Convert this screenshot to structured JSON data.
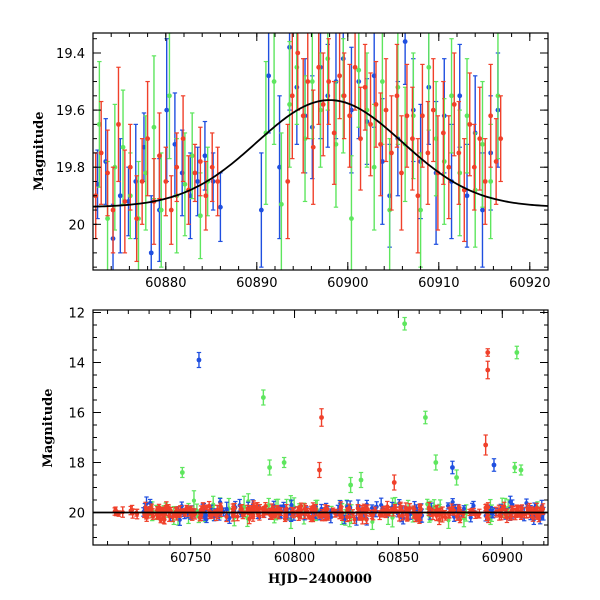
{
  "colors": {
    "blue": "#1f4fe0",
    "green": "#5ee65e",
    "red": "#f0402a",
    "model": "#000000"
  },
  "chart_data": [
    {
      "type": "scatter",
      "id": "top",
      "xlabel": "",
      "ylabel": "Magnitude",
      "xlim": [
        60872,
        60922
      ],
      "ylim": [
        20.16,
        19.33
      ],
      "y_inverted": true,
      "xticks": [
        60880,
        60890,
        60900,
        60910,
        60920
      ],
      "yticks": [
        19.4,
        19.6,
        19.8,
        20
      ],
      "ytick_labels": [
        "19.4",
        "19.6",
        "19.8",
        "20"
      ],
      "model": {
        "type": "gaussian_peak",
        "baseline": 19.94,
        "peak_mag": 19.565,
        "t0": 60898,
        "sigma": 8
      },
      "series": [
        {
          "color_key": "blue",
          "points": [
            [
              60872.5,
              19.86,
              0.12
            ],
            [
              60873.4,
              19.78,
              0.15
            ],
            [
              60874.2,
              20.05,
              0.12
            ],
            [
              60875.0,
              19.9,
              0.2
            ],
            [
              60875.9,
              19.92,
              0.12
            ],
            [
              60876.7,
              19.85,
              0.2
            ],
            [
              60877.6,
              19.73,
              0.12
            ],
            [
              60878.4,
              20.1,
              0.2
            ],
            [
              60879.3,
              19.95,
              0.18
            ],
            [
              60880.1,
              19.6,
              0.25
            ],
            [
              60881.0,
              19.72,
              0.18
            ],
            [
              60881.8,
              19.82,
              0.15
            ],
            [
              60882.7,
              19.9,
              0.15
            ],
            [
              60883.5,
              19.85,
              0.12
            ],
            [
              60884.3,
              19.76,
              0.12
            ],
            [
              60885.2,
              19.85,
              0.1
            ],
            [
              60886.0,
              19.94,
              0.12
            ],
            [
              60890.5,
              19.95,
              0.2
            ],
            [
              60891.3,
              19.48,
              0.2
            ],
            [
              60892.5,
              19.8,
              0.25
            ],
            [
              60893.6,
              19.38,
              0.22
            ],
            [
              60894.4,
              19.52,
              0.2
            ],
            [
              60895.3,
              19.62,
              0.2
            ],
            [
              60896.1,
              19.66,
              0.18
            ],
            [
              60897.0,
              19.45,
              0.25
            ],
            [
              60897.8,
              19.55,
              0.18
            ],
            [
              60898.7,
              19.5,
              0.2
            ],
            [
              60899.5,
              19.42,
              0.15
            ],
            [
              60900.4,
              19.6,
              0.22
            ],
            [
              60901.2,
              19.5,
              0.2
            ],
            [
              60902.1,
              19.64,
              0.15
            ],
            [
              60902.9,
              19.48,
              0.18
            ],
            [
              60903.8,
              19.78,
              0.22
            ],
            [
              60904.6,
              19.9,
              0.18
            ],
            [
              60905.5,
              19.7,
              0.2
            ],
            [
              60906.3,
              19.36,
              0.15
            ],
            [
              60907.2,
              19.6,
              0.18
            ],
            [
              60908.0,
              19.78,
              0.2
            ],
            [
              60908.9,
              19.52,
              0.2
            ],
            [
              60909.7,
              19.82,
              0.25
            ],
            [
              60910.6,
              19.62,
              0.2
            ],
            [
              60911.4,
              19.85,
              0.2
            ],
            [
              60912.3,
              19.55,
              0.18
            ],
            [
              60913.1,
              19.9,
              0.18
            ],
            [
              60914.0,
              19.68,
              0.2
            ],
            [
              60914.8,
              19.95,
              0.2
            ],
            [
              60915.7,
              19.75,
              0.2
            ],
            [
              60916.5,
              19.6,
              0.2
            ]
          ]
        },
        {
          "color_key": "green",
          "points": [
            [
              60872.7,
              19.65,
              0.22
            ],
            [
              60873.6,
              19.98,
              0.2
            ],
            [
              60874.4,
              19.8,
              0.22
            ],
            [
              60875.3,
              19.73,
              0.2
            ],
            [
              60876.1,
              19.9,
              0.15
            ],
            [
              60877.0,
              19.98,
              0.2
            ],
            [
              60877.8,
              19.82,
              0.2
            ],
            [
              60878.7,
              19.66,
              0.25
            ],
            [
              60879.5,
              19.95,
              0.2
            ],
            [
              60880.4,
              19.55,
              0.22
            ],
            [
              60881.2,
              19.9,
              0.2
            ],
            [
              60882.1,
              19.86,
              0.18
            ],
            [
              60882.9,
              19.76,
              0.15
            ],
            [
              60883.8,
              19.97,
              0.15
            ],
            [
              60884.6,
              19.85,
              0.12
            ],
            [
              60891.0,
              19.68,
              0.25
            ],
            [
              60891.9,
              19.5,
              0.22
            ],
            [
              60892.7,
              19.93,
              0.25
            ],
            [
              60893.6,
              19.58,
              0.22
            ],
            [
              60894.4,
              19.45,
              0.2
            ],
            [
              60895.3,
              19.7,
              0.22
            ],
            [
              60896.1,
              19.5,
              0.2
            ],
            [
              60897.0,
              19.6,
              0.2
            ],
            [
              60897.8,
              19.42,
              0.18
            ],
            [
              60898.7,
              19.72,
              0.22
            ],
            [
              60899.5,
              19.55,
              0.2
            ],
            [
              60900.4,
              19.98,
              0.22
            ],
            [
              60901.2,
              19.46,
              0.2
            ],
            [
              60902.1,
              19.6,
              0.2
            ],
            [
              60902.9,
              19.8,
              0.22
            ],
            [
              60903.8,
              19.5,
              0.22
            ],
            [
              60904.6,
              19.95,
              0.25
            ],
            [
              60905.5,
              19.52,
              0.2
            ],
            [
              60906.3,
              19.72,
              0.2
            ],
            [
              60907.2,
              19.62,
              0.22
            ],
            [
              60908.0,
              19.95,
              0.2
            ],
            [
              60908.9,
              19.45,
              0.22
            ],
            [
              60909.7,
              19.7,
              0.2
            ],
            [
              60910.6,
              19.78,
              0.22
            ],
            [
              60911.4,
              19.55,
              0.2
            ],
            [
              60912.3,
              19.82,
              0.22
            ],
            [
              60913.1,
              19.62,
              0.2
            ],
            [
              60914.0,
              19.88,
              0.2
            ],
            [
              60914.8,
              19.72,
              0.22
            ],
            [
              60915.7,
              19.85,
              0.2
            ],
            [
              60916.5,
              19.55,
              0.22
            ]
          ]
        },
        {
          "color_key": "red",
          "points": [
            [
              60872.3,
              19.9,
              0.15
            ],
            [
              60872.9,
              19.75,
              0.18
            ],
            [
              60873.6,
              19.82,
              0.15
            ],
            [
              60874.2,
              19.95,
              0.15
            ],
            [
              60874.8,
              19.65,
              0.2
            ],
            [
              60875.5,
              19.92,
              0.18
            ],
            [
              60876.1,
              19.8,
              0.15
            ],
            [
              60876.8,
              19.98,
              0.15
            ],
            [
              60877.4,
              19.85,
              0.15
            ],
            [
              60878.0,
              19.7,
              0.2
            ],
            [
              60878.7,
              19.92,
              0.15
            ],
            [
              60879.3,
              19.76,
              0.15
            ],
            [
              60880.0,
              19.85,
              0.12
            ],
            [
              60880.6,
              19.95,
              0.12
            ],
            [
              60881.2,
              19.8,
              0.12
            ],
            [
              60881.9,
              19.7,
              0.15
            ],
            [
              60882.5,
              19.88,
              0.12
            ],
            [
              60883.2,
              19.82,
              0.1
            ],
            [
              60883.8,
              19.78,
              0.12
            ],
            [
              60884.4,
              19.9,
              0.12
            ],
            [
              60885.1,
              19.8,
              0.12
            ],
            [
              60885.7,
              19.85,
              0.12
            ],
            [
              60893.4,
              19.85,
              0.2
            ],
            [
              60893.9,
              19.55,
              0.22
            ],
            [
              60894.5,
              19.4,
              0.2
            ],
            [
              60895.1,
              19.62,
              0.2
            ],
            [
              60895.6,
              19.5,
              0.2
            ],
            [
              60896.2,
              19.73,
              0.2
            ],
            [
              60896.8,
              19.45,
              0.2
            ],
            [
              60897.3,
              19.58,
              0.18
            ],
            [
              60897.9,
              19.5,
              0.15
            ],
            [
              60898.5,
              19.68,
              0.18
            ],
            [
              60899.1,
              19.48,
              0.15
            ],
            [
              60899.6,
              19.55,
              0.15
            ],
            [
              60900.2,
              19.62,
              0.18
            ],
            [
              60900.8,
              19.45,
              0.15
            ],
            [
              60901.4,
              19.7,
              0.18
            ],
            [
              60901.9,
              19.52,
              0.15
            ],
            [
              60902.5,
              19.65,
              0.18
            ],
            [
              60903.1,
              19.58,
              0.15
            ],
            [
              60903.6,
              19.72,
              0.18
            ],
            [
              60904.2,
              19.6,
              0.18
            ],
            [
              60904.8,
              19.75,
              0.2
            ],
            [
              60905.4,
              19.55,
              0.18
            ],
            [
              60905.9,
              19.82,
              0.2
            ],
            [
              60906.5,
              19.62,
              0.18
            ],
            [
              60907.1,
              19.7,
              0.18
            ],
            [
              60907.7,
              19.9,
              0.2
            ],
            [
              60908.2,
              19.62,
              0.18
            ],
            [
              60908.8,
              19.75,
              0.18
            ],
            [
              60909.4,
              19.6,
              0.18
            ],
            [
              60909.9,
              19.82,
              0.2
            ],
            [
              60910.5,
              19.68,
              0.18
            ],
            [
              60911.1,
              19.8,
              0.18
            ],
            [
              60911.7,
              19.58,
              0.18
            ],
            [
              60912.2,
              19.75,
              0.18
            ],
            [
              60912.8,
              19.88,
              0.18
            ],
            [
              60913.4,
              19.65,
              0.18
            ],
            [
              60913.9,
              19.8,
              0.15
            ],
            [
              60914.5,
              19.7,
              0.18
            ],
            [
              60915.1,
              19.85,
              0.15
            ],
            [
              60915.7,
              19.62,
              0.18
            ],
            [
              60916.3,
              19.78,
              0.15
            ],
            [
              60916.8,
              19.7,
              0.15
            ]
          ]
        }
      ]
    },
    {
      "type": "scatter",
      "id": "bottom",
      "xlabel": "HJD−2400000",
      "ylabel": "Magnitude",
      "xlim": [
        60703,
        60922
      ],
      "ylim": [
        21.3,
        11.9
      ],
      "y_inverted": true,
      "xticks": [
        60750,
        60800,
        60850,
        60900
      ],
      "yticks": [
        12,
        14,
        16,
        18,
        20
      ],
      "ytick_labels": [
        "12",
        "14",
        "16",
        "18",
        "20"
      ],
      "model": {
        "type": "flat",
        "mag": 20.0
      },
      "outliers": [
        {
          "color_key": "blue",
          "x": 60754,
          "y": 13.9,
          "err": 0.3
        },
        {
          "color_key": "green",
          "x": 60853,
          "y": 12.45,
          "err": 0.25
        },
        {
          "color_key": "green",
          "x": 60907,
          "y": 13.6,
          "err": 0.25
        },
        {
          "color_key": "red",
          "x": 60893,
          "y": 13.6,
          "err": 0.15
        },
        {
          "color_key": "red",
          "x": 60893,
          "y": 14.3,
          "err": 0.35
        },
        {
          "color_key": "green",
          "x": 60785,
          "y": 15.4,
          "err": 0.3
        },
        {
          "color_key": "green",
          "x": 60863,
          "y": 16.2,
          "err": 0.25
        },
        {
          "color_key": "red",
          "x": 60813,
          "y": 16.2,
          "err": 0.35
        },
        {
          "color_key": "red",
          "x": 60892,
          "y": 17.3,
          "err": 0.4
        },
        {
          "color_key": "green",
          "x": 60746,
          "y": 18.4,
          "err": 0.2
        },
        {
          "color_key": "green",
          "x": 60788,
          "y": 18.2,
          "err": 0.3
        },
        {
          "color_key": "green",
          "x": 60795,
          "y": 18.0,
          "err": 0.2
        },
        {
          "color_key": "green",
          "x": 60868,
          "y": 18.0,
          "err": 0.3
        },
        {
          "color_key": "green",
          "x": 60906,
          "y": 18.2,
          "err": 0.2
        },
        {
          "color_key": "green",
          "x": 60909,
          "y": 18.3,
          "err": 0.2
        },
        {
          "color_key": "blue",
          "x": 60876,
          "y": 18.2,
          "err": 0.25
        },
        {
          "color_key": "blue",
          "x": 60896,
          "y": 18.1,
          "err": 0.25
        },
        {
          "color_key": "red",
          "x": 60812,
          "y": 18.3,
          "err": 0.3
        },
        {
          "color_key": "green",
          "x": 60832,
          "y": 18.7,
          "err": 0.3
        },
        {
          "color_key": "green",
          "x": 60827,
          "y": 18.9,
          "err": 0.3
        },
        {
          "color_key": "green",
          "x": 60878,
          "y": 18.6,
          "err": 0.3
        },
        {
          "color_key": "red",
          "x": 60848,
          "y": 18.8,
          "err": 0.3
        }
      ],
      "bands": [
        {
          "color_key": "red",
          "x_range": [
            60706,
            60725
          ],
          "center": 20.0,
          "spread": 0.15,
          "count": 10,
          "err": 0.15
        },
        {
          "color_key": "green",
          "x_range": [
            60727,
            60920
          ],
          "center": 19.95,
          "spread": 0.45,
          "count": 70,
          "err": 0.3
        },
        {
          "color_key": "blue",
          "x_range": [
            60727,
            60920
          ],
          "center": 19.95,
          "spread": 0.4,
          "count": 140,
          "err": 0.2
        },
        {
          "color_key": "red",
          "x_range": [
            60727,
            60920
          ],
          "center": 20.0,
          "spread": 0.32,
          "count": 320,
          "err": 0.15
        }
      ]
    }
  ]
}
